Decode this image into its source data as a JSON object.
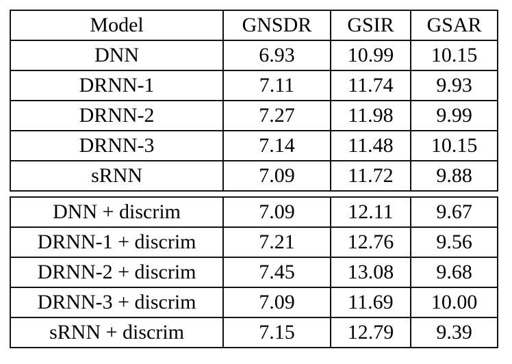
{
  "page": {
    "background_color": "#ffffff",
    "text_color": "#000000",
    "rule_color": "#111111"
  },
  "table": {
    "columns": [
      "Model",
      "GNSDR",
      "GSIR",
      "GSAR"
    ],
    "sections": [
      {
        "rows": [
          {
            "model": "DNN",
            "gnsdr": "6.93",
            "gsir": "10.99",
            "gsar": "10.15"
          },
          {
            "model": "DRNN-1",
            "gnsdr": "7.11",
            "gsir": "11.74",
            "gsar": "9.93"
          },
          {
            "model": "DRNN-2",
            "gnsdr": "7.27",
            "gsir": "11.98",
            "gsar": "9.99"
          },
          {
            "model": "DRNN-3",
            "gnsdr": "7.14",
            "gsir": "11.48",
            "gsar": "10.15"
          },
          {
            "model": "sRNN",
            "gnsdr": "7.09",
            "gsir": "11.72",
            "gsar": "9.88"
          }
        ]
      },
      {
        "rows": [
          {
            "model": "DNN + discrim",
            "gnsdr": "7.09",
            "gsir": "12.11",
            "gsar": "9.67"
          },
          {
            "model": "DRNN-1 + discrim",
            "gnsdr": "7.21",
            "gsir": "12.76",
            "gsar": "9.56"
          },
          {
            "model": "DRNN-2 + discrim",
            "gnsdr": "7.45",
            "gsir": "13.08",
            "gsar": "9.68"
          },
          {
            "model": "DRNN-3 + discrim",
            "gnsdr": "7.09",
            "gsir": "11.69",
            "gsar": "10.00"
          },
          {
            "model": "sRNN + discrim",
            "gnsdr": "7.15",
            "gsir": "12.79",
            "gsar": "9.39"
          }
        ]
      }
    ]
  },
  "chart_data": {
    "type": "table",
    "columns": [
      "Model",
      "GNSDR",
      "GSIR",
      "GSAR"
    ],
    "rows": [
      [
        "DNN",
        6.93,
        10.99,
        10.15
      ],
      [
        "DRNN-1",
        7.11,
        11.74,
        9.93
      ],
      [
        "DRNN-2",
        7.27,
        11.98,
        9.99
      ],
      [
        "DRNN-3",
        7.14,
        11.48,
        10.15
      ],
      [
        "sRNN",
        7.09,
        11.72,
        9.88
      ],
      [
        "DNN + discrim",
        7.09,
        12.11,
        9.67
      ],
      [
        "DRNN-1 + discrim",
        7.21,
        12.76,
        9.56
      ],
      [
        "DRNN-2 + discrim",
        7.45,
        13.08,
        9.68
      ],
      [
        "DRNN-3 + discrim",
        7.09,
        11.69,
        10.0
      ],
      [
        "sRNN + discrim",
        7.15,
        12.79,
        9.39
      ]
    ]
  }
}
